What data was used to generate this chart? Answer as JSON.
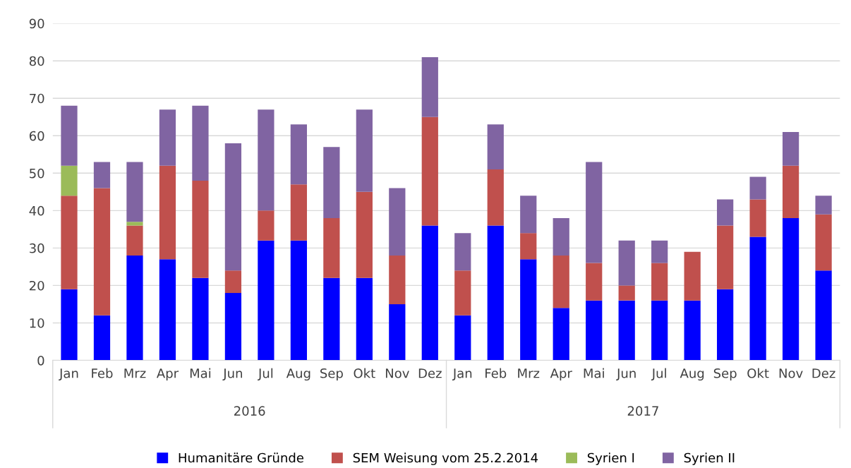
{
  "chart_data": {
    "type": "bar",
    "stacked": true,
    "categories": [
      "Jan",
      "Feb",
      "Mrz",
      "Apr",
      "Mai",
      "Jun",
      "Jul",
      "Aug",
      "Sep",
      "Okt",
      "Nov",
      "Dez",
      "Jan",
      "Feb",
      "Mrz",
      "Apr",
      "Mai",
      "Jun",
      "Jul",
      "Aug",
      "Sep",
      "Okt",
      "Nov",
      "Dez"
    ],
    "series": [
      {
        "name": "Humanitäre Gründe",
        "color": "#0000ff",
        "values": [
          19,
          12,
          28,
          27,
          22,
          18,
          32,
          32,
          22,
          22,
          15,
          36,
          12,
          36,
          27,
          14,
          16,
          16,
          16,
          16,
          19,
          33,
          38,
          24
        ]
      },
      {
        "name": "SEM Weisung vom 25.2.2014",
        "color": "#c0504d",
        "values": [
          25,
          34,
          8,
          25,
          26,
          6,
          8,
          15,
          16,
          23,
          13,
          29,
          12,
          15,
          7,
          14,
          10,
          4,
          10,
          13,
          17,
          10,
          14,
          15
        ]
      },
      {
        "name": "Syrien I",
        "color": "#9bbb59",
        "values": [
          8,
          null,
          1,
          null,
          null,
          null,
          null,
          null,
          null,
          null,
          null,
          null,
          null,
          null,
          null,
          null,
          null,
          null,
          null,
          null,
          null,
          null,
          null,
          null
        ]
      },
      {
        "name": "Syrien II",
        "color": "#8064a2",
        "values": [
          16,
          7,
          16,
          15,
          20,
          34,
          27,
          16,
          19,
          22,
          18,
          16,
          10,
          12,
          10,
          10,
          27,
          12,
          6,
          null,
          7,
          6,
          9,
          5
        ]
      }
    ],
    "annotations": [
      "2016",
      "2017"
    ],
    "ylim": [
      0,
      90
    ],
    "yticks": [
      0,
      10,
      20,
      30,
      40,
      50,
      60,
      70,
      80,
      90
    ],
    "grid": "y",
    "legend": "bottom"
  }
}
